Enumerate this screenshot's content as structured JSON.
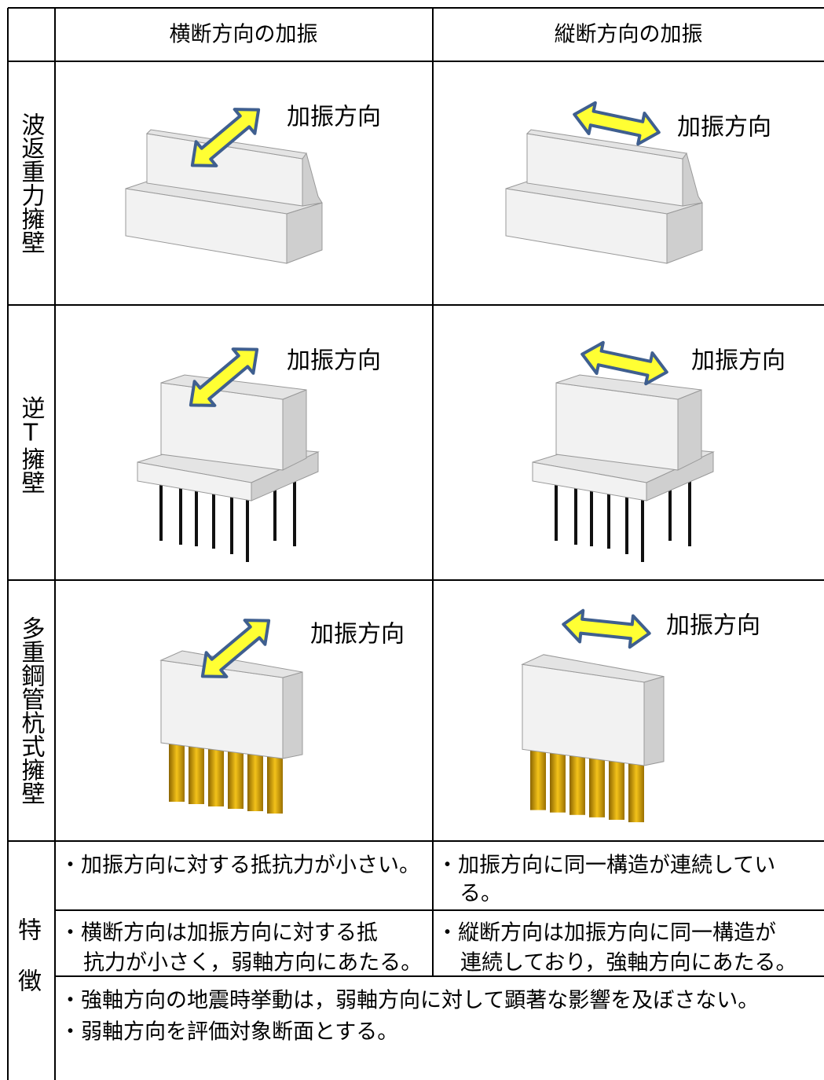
{
  "header": {
    "columns": [
      "横断方向の加振",
      "縦断方向の加振"
    ]
  },
  "rows": [
    {
      "label": "波返重力擁壁",
      "cells": [
        {
          "annotation": "加振方向"
        },
        {
          "annotation": "加振方向"
        }
      ]
    },
    {
      "label": "逆T擁壁",
      "cells": [
        {
          "annotation": "加振方向"
        },
        {
          "annotation": "加振方向"
        }
      ]
    },
    {
      "label": "多重鋼管杭式擁壁",
      "cells": [
        {
          "annotation": "加振方向"
        },
        {
          "annotation": "加振方向"
        }
      ]
    }
  ],
  "features": {
    "label": [
      "特",
      "徴"
    ],
    "rows": [
      [
        [
          "・加振方向に対する抵抗力が小さい。"
        ],
        [
          "・加振方向に同一構造が連続してい",
          "る。"
        ]
      ],
      [
        [
          "・横断方向は加振方向に対する抵",
          "抗力が小さく，弱軸方向にあたる。"
        ],
        [
          "・縦断方向は加振方向に同一構造が",
          "連続しており，強軸方向にあたる。"
        ]
      ]
    ],
    "summary": [
      "・強軸方向の地震時挙動は，弱軸方向に対して顕著な影響を及ぼさない。",
      "・弱軸方向を評価対象断面とする。"
    ]
  }
}
